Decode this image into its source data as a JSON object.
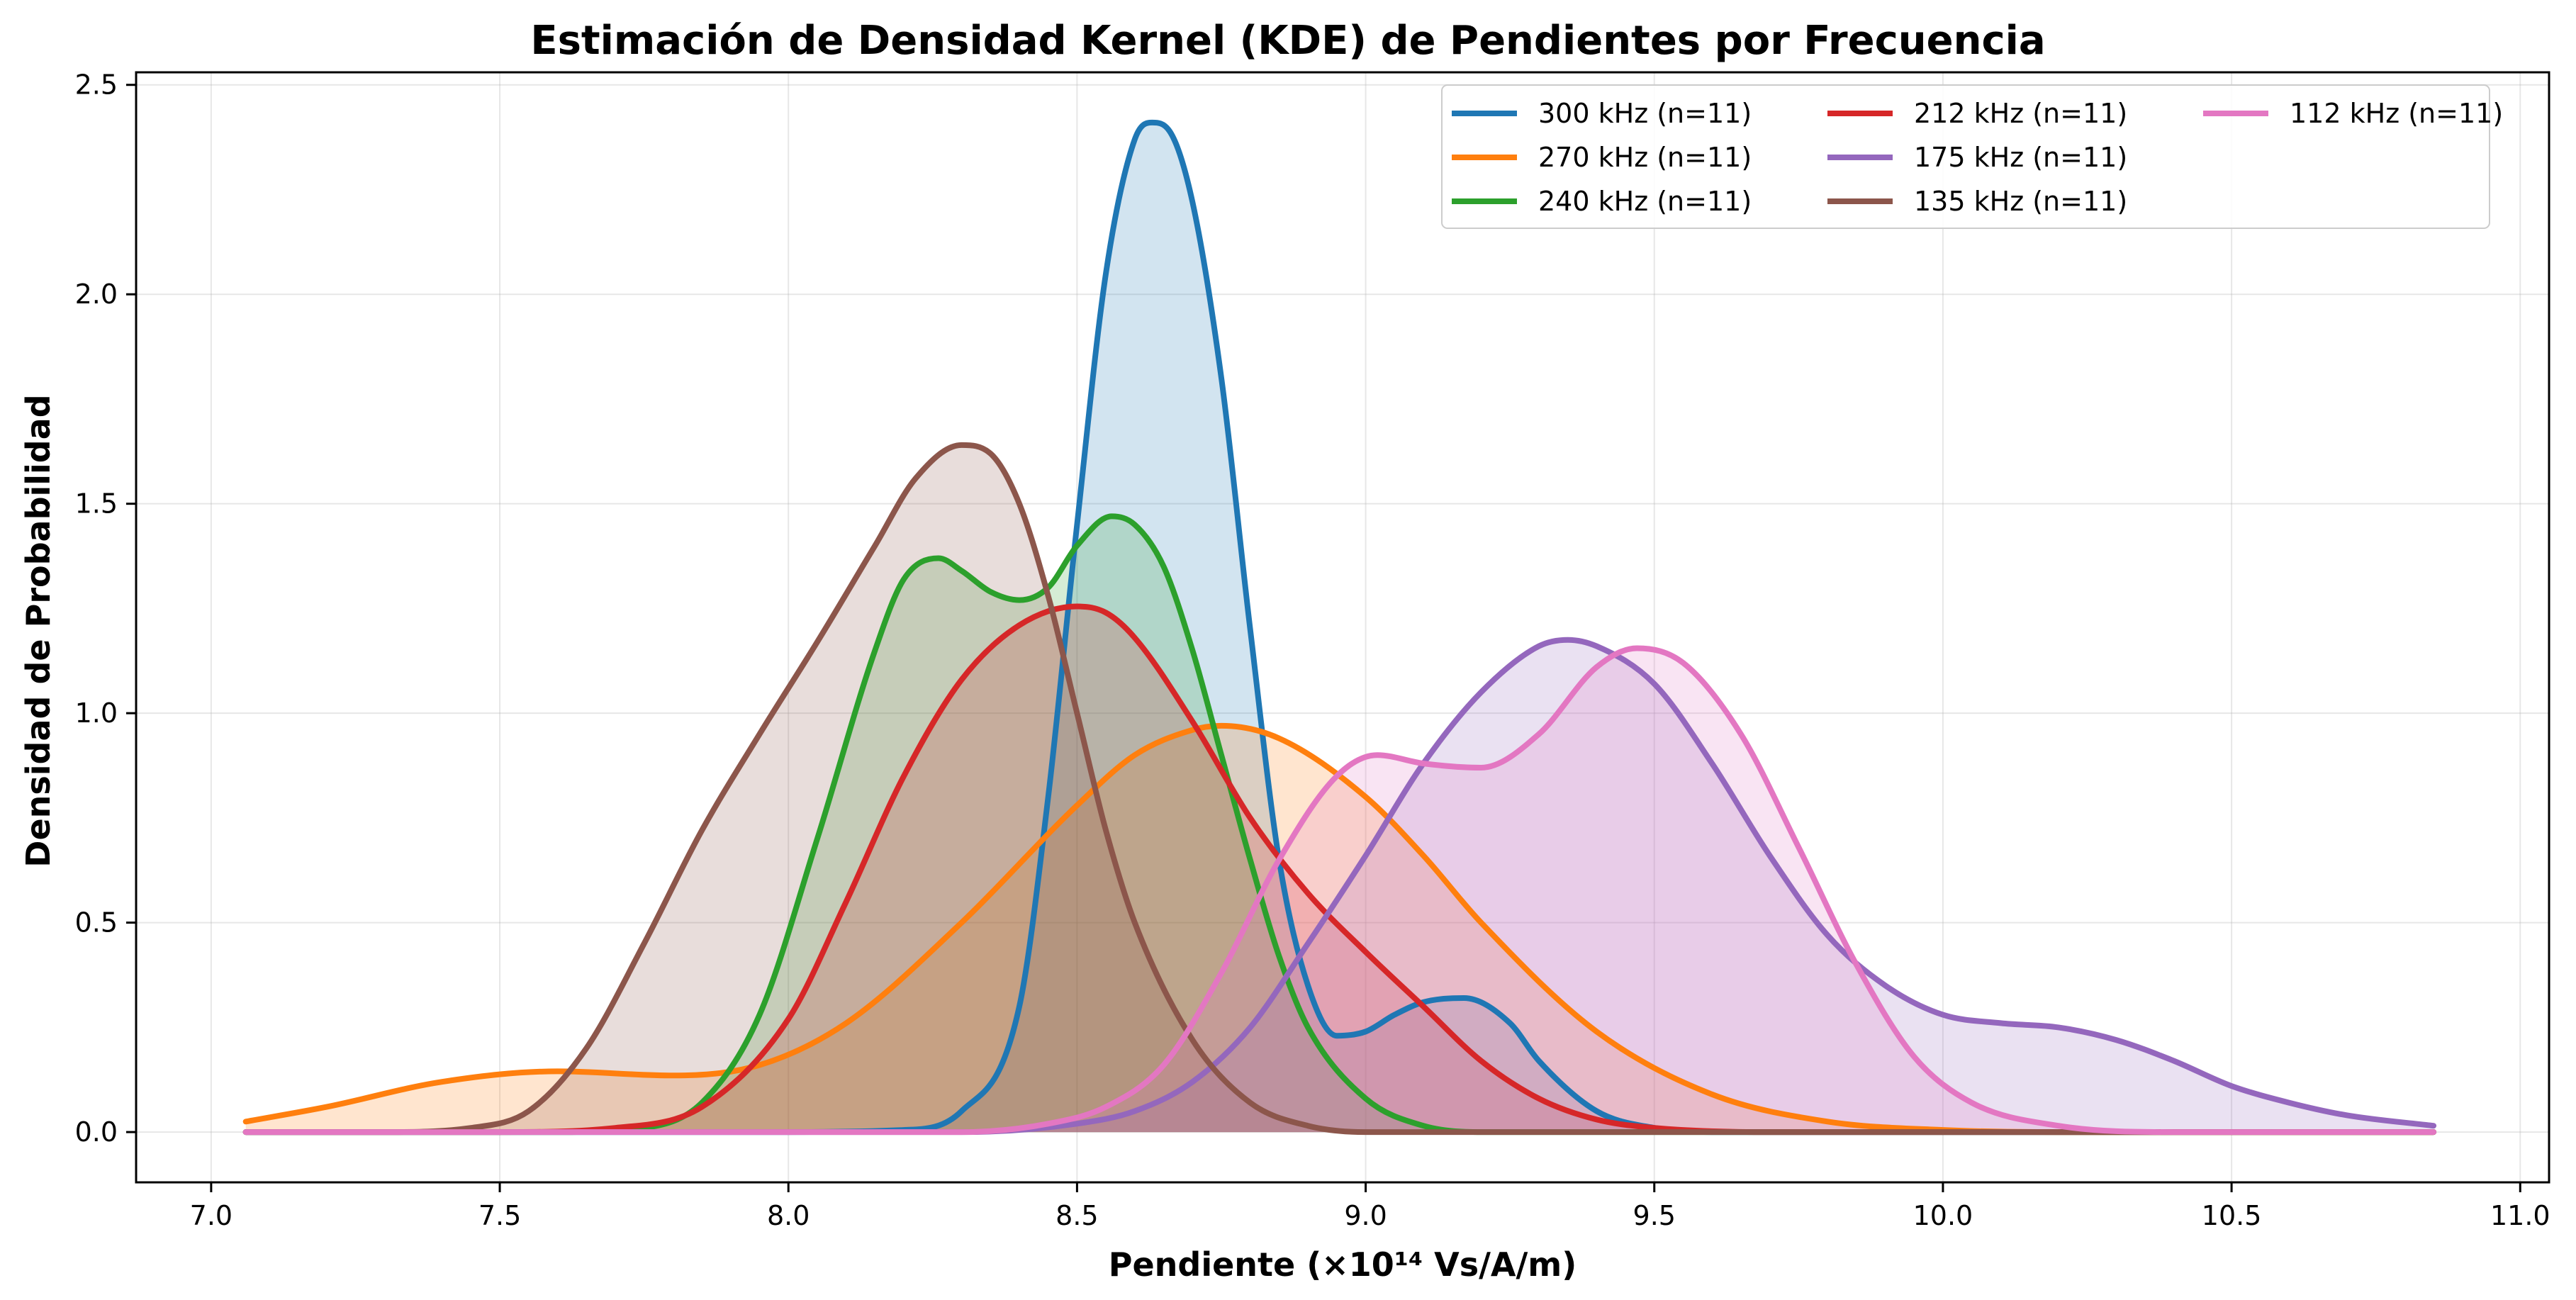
{
  "chart_data": {
    "type": "area",
    "title": "Estimación de Densidad Kernel (KDE) de Pendientes por Frecuencia",
    "xlabel": "Pendiente (×10¹⁴ Vs/A/m)",
    "ylabel": "Densidad de Probabilidad",
    "xlim": [
      6.87,
      11.05
    ],
    "ylim": [
      -0.12,
      2.53
    ],
    "xticks": [
      7.0,
      7.5,
      8.0,
      8.5,
      9.0,
      9.5,
      10.0,
      10.5,
      11.0
    ],
    "xtick_labels": [
      "7.0",
      "7.5",
      "8.0",
      "8.5",
      "9.0",
      "9.5",
      "10.0",
      "10.5",
      "11.0"
    ],
    "yticks": [
      0.0,
      0.5,
      1.0,
      1.5,
      2.0,
      2.5
    ],
    "ytick_labels": [
      "0.0",
      "0.5",
      "1.0",
      "1.5",
      "2.0",
      "2.5"
    ],
    "grid": true,
    "legend_position": "top-right",
    "legend_columns": 3,
    "series": [
      {
        "name": "300 kHz (n=11)",
        "color": "#1f77b4",
        "points": [
          [
            7.06,
            0
          ],
          [
            8.0,
            0
          ],
          [
            8.2,
            0.005
          ],
          [
            8.3,
            0.05
          ],
          [
            8.4,
            0.3
          ],
          [
            8.45,
            0.8
          ],
          [
            8.5,
            1.45
          ],
          [
            8.55,
            2.05
          ],
          [
            8.6,
            2.37
          ],
          [
            8.63,
            2.41
          ],
          [
            8.66,
            2.39
          ],
          [
            8.7,
            2.22
          ],
          [
            8.75,
            1.8
          ],
          [
            8.8,
            1.2
          ],
          [
            8.85,
            0.65
          ],
          [
            8.9,
            0.35
          ],
          [
            8.95,
            0.23
          ],
          [
            9.0,
            0.24
          ],
          [
            9.05,
            0.28
          ],
          [
            9.1,
            0.31
          ],
          [
            9.17,
            0.32
          ],
          [
            9.25,
            0.26
          ],
          [
            9.3,
            0.17
          ],
          [
            9.4,
            0.05
          ],
          [
            9.5,
            0.01
          ],
          [
            9.6,
            0
          ],
          [
            10.85,
            0
          ]
        ]
      },
      {
        "name": "270 kHz (n=11)",
        "color": "#ff7f0e",
        "points": [
          [
            7.06,
            0.025
          ],
          [
            7.2,
            0.06
          ],
          [
            7.4,
            0.12
          ],
          [
            7.6,
            0.145
          ],
          [
            7.8,
            0.135
          ],
          [
            7.95,
            0.16
          ],
          [
            8.1,
            0.26
          ],
          [
            8.3,
            0.5
          ],
          [
            8.5,
            0.78
          ],
          [
            8.6,
            0.9
          ],
          [
            8.7,
            0.96
          ],
          [
            8.75,
            0.97
          ],
          [
            8.85,
            0.94
          ],
          [
            9.0,
            0.8
          ],
          [
            9.1,
            0.66
          ],
          [
            9.2,
            0.5
          ],
          [
            9.4,
            0.24
          ],
          [
            9.6,
            0.09
          ],
          [
            9.8,
            0.025
          ],
          [
            10.0,
            0.005
          ],
          [
            10.2,
            0
          ],
          [
            10.85,
            0
          ]
        ]
      },
      {
        "name": "240 kHz (n=11)",
        "color": "#2ca02c",
        "points": [
          [
            7.06,
            0
          ],
          [
            7.6,
            0
          ],
          [
            7.75,
            0.01
          ],
          [
            7.85,
            0.07
          ],
          [
            7.95,
            0.28
          ],
          [
            8.05,
            0.7
          ],
          [
            8.15,
            1.15
          ],
          [
            8.2,
            1.32
          ],
          [
            8.26,
            1.37
          ],
          [
            8.3,
            1.34
          ],
          [
            8.35,
            1.29
          ],
          [
            8.4,
            1.27
          ],
          [
            8.45,
            1.3
          ],
          [
            8.5,
            1.4
          ],
          [
            8.56,
            1.47
          ],
          [
            8.6,
            1.45
          ],
          [
            8.65,
            1.35
          ],
          [
            8.7,
            1.15
          ],
          [
            8.75,
            0.9
          ],
          [
            8.8,
            0.65
          ],
          [
            8.85,
            0.42
          ],
          [
            8.9,
            0.25
          ],
          [
            9.0,
            0.08
          ],
          [
            9.1,
            0.015
          ],
          [
            9.2,
            0
          ],
          [
            10.85,
            0
          ]
        ]
      },
      {
        "name": "212 kHz (n=11)",
        "color": "#d62728",
        "points": [
          [
            7.06,
            0
          ],
          [
            7.5,
            0
          ],
          [
            7.7,
            0.01
          ],
          [
            7.85,
            0.06
          ],
          [
            8.0,
            0.27
          ],
          [
            8.1,
            0.55
          ],
          [
            8.2,
            0.85
          ],
          [
            8.3,
            1.08
          ],
          [
            8.4,
            1.21
          ],
          [
            8.5,
            1.255
          ],
          [
            8.55,
            1.24
          ],
          [
            8.6,
            1.18
          ],
          [
            8.7,
            0.98
          ],
          [
            8.8,
            0.75
          ],
          [
            8.9,
            0.57
          ],
          [
            9.0,
            0.43
          ],
          [
            9.1,
            0.3
          ],
          [
            9.2,
            0.17
          ],
          [
            9.3,
            0.08
          ],
          [
            9.4,
            0.03
          ],
          [
            9.5,
            0.01
          ],
          [
            9.7,
            0
          ],
          [
            10.85,
            0
          ]
        ]
      },
      {
        "name": "175 kHz (n=11)",
        "color": "#9467bd",
        "points": [
          [
            7.06,
            0
          ],
          [
            8.3,
            0
          ],
          [
            8.5,
            0.02
          ],
          [
            8.6,
            0.05
          ],
          [
            8.7,
            0.12
          ],
          [
            8.8,
            0.25
          ],
          [
            8.9,
            0.45
          ],
          [
            9.0,
            0.66
          ],
          [
            9.1,
            0.88
          ],
          [
            9.2,
            1.05
          ],
          [
            9.3,
            1.16
          ],
          [
            9.35,
            1.175
          ],
          [
            9.4,
            1.16
          ],
          [
            9.5,
            1.07
          ],
          [
            9.6,
            0.88
          ],
          [
            9.7,
            0.66
          ],
          [
            9.8,
            0.47
          ],
          [
            9.9,
            0.35
          ],
          [
            10.0,
            0.28
          ],
          [
            10.1,
            0.26
          ],
          [
            10.2,
            0.25
          ],
          [
            10.3,
            0.22
          ],
          [
            10.4,
            0.17
          ],
          [
            10.5,
            0.11
          ],
          [
            10.6,
            0.07
          ],
          [
            10.7,
            0.04
          ],
          [
            10.85,
            0.015
          ]
        ]
      },
      {
        "name": "135 kHz (n=11)",
        "color": "#8c564b",
        "points": [
          [
            7.06,
            0
          ],
          [
            7.3,
            0
          ],
          [
            7.45,
            0.01
          ],
          [
            7.55,
            0.05
          ],
          [
            7.65,
            0.2
          ],
          [
            7.75,
            0.45
          ],
          [
            7.85,
            0.72
          ],
          [
            7.95,
            0.95
          ],
          [
            8.05,
            1.17
          ],
          [
            8.15,
            1.4
          ],
          [
            8.22,
            1.56
          ],
          [
            8.3,
            1.64
          ],
          [
            8.35,
            1.62
          ],
          [
            8.4,
            1.5
          ],
          [
            8.45,
            1.28
          ],
          [
            8.5,
            1.0
          ],
          [
            8.55,
            0.72
          ],
          [
            8.6,
            0.5
          ],
          [
            8.7,
            0.22
          ],
          [
            8.8,
            0.07
          ],
          [
            8.9,
            0.015
          ],
          [
            9.0,
            0
          ],
          [
            10.85,
            0
          ]
        ]
      },
      {
        "name": "112 kHz (n=11)",
        "color": "#e377c2",
        "points": [
          [
            7.06,
            0
          ],
          [
            8.3,
            0
          ],
          [
            8.45,
            0.02
          ],
          [
            8.55,
            0.06
          ],
          [
            8.65,
            0.16
          ],
          [
            8.75,
            0.38
          ],
          [
            8.85,
            0.65
          ],
          [
            8.95,
            0.85
          ],
          [
            9.02,
            0.9
          ],
          [
            9.1,
            0.88
          ],
          [
            9.2,
            0.87
          ],
          [
            9.3,
            0.95
          ],
          [
            9.4,
            1.11
          ],
          [
            9.47,
            1.155
          ],
          [
            9.55,
            1.12
          ],
          [
            9.65,
            0.95
          ],
          [
            9.75,
            0.68
          ],
          [
            9.85,
            0.4
          ],
          [
            9.95,
            0.18
          ],
          [
            10.05,
            0.07
          ],
          [
            10.2,
            0.015
          ],
          [
            10.4,
            0
          ],
          [
            10.85,
            0
          ]
        ]
      }
    ]
  }
}
